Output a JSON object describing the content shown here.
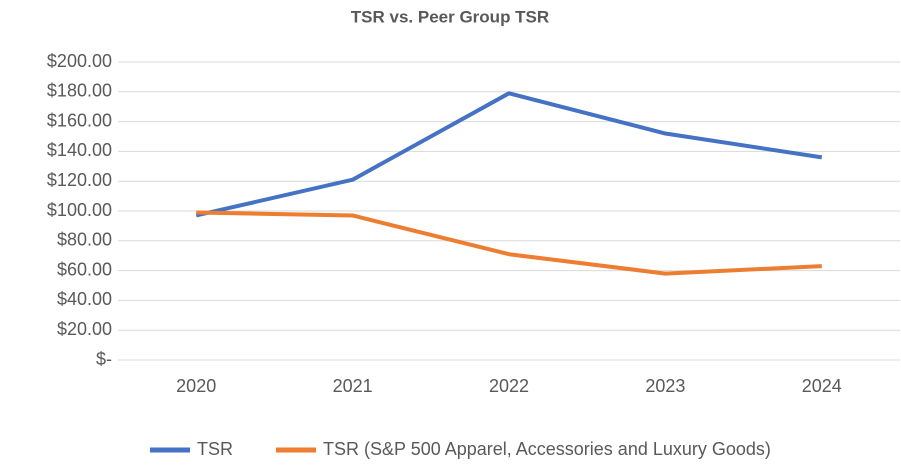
{
  "chart_data": {
    "type": "line",
    "title": "TSR vs. Peer Group TSR",
    "categories": [
      "2020",
      "2021",
      "2022",
      "2023",
      "2024"
    ],
    "series": [
      {
        "name": "TSR",
        "color": "#4472c4",
        "values": [
          97,
          121,
          179,
          152,
          136
        ]
      },
      {
        "name": "TSR (S&P 500 Apparel, Accessories and Luxury Goods)",
        "color": "#ed7d31",
        "values": [
          99,
          97,
          71,
          58,
          63
        ]
      }
    ],
    "ylim": [
      0,
      200
    ],
    "yticks": [
      {
        "value": 0,
        "label": "$-"
      },
      {
        "value": 20,
        "label": "$20.00"
      },
      {
        "value": 40,
        "label": "$40.00"
      },
      {
        "value": 60,
        "label": "$60.00"
      },
      {
        "value": 80,
        "label": "$80.00"
      },
      {
        "value": 100,
        "label": "$100.00"
      },
      {
        "value": 120,
        "label": "$120.00"
      },
      {
        "value": 140,
        "label": "$140.00"
      },
      {
        "value": 160,
        "label": "$160.00"
      },
      {
        "value": 180,
        "label": "$180.00"
      },
      {
        "value": 200,
        "label": "$200.00"
      }
    ],
    "grid": true,
    "legend": "bottom"
  }
}
